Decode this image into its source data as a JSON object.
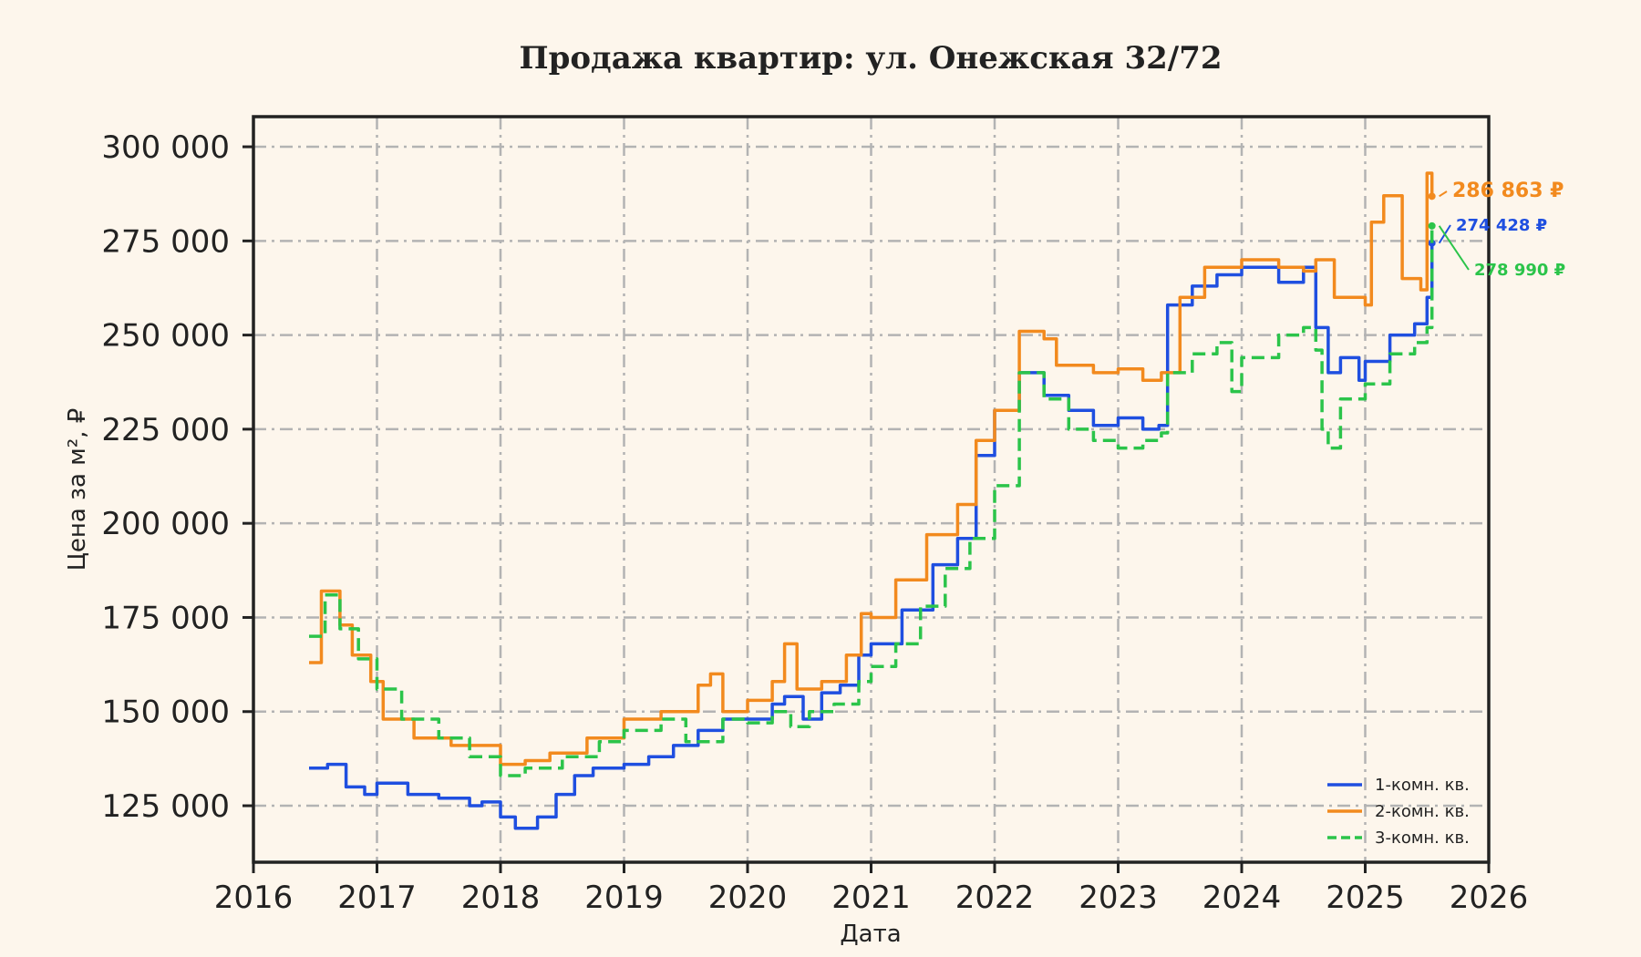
{
  "chart_data": {
    "type": "line",
    "title": "Продажа квартир: ул. Онежская 32/72",
    "xlabel": "Дата",
    "ylabel": "Цена за м², ₽",
    "xlim": [
      2016,
      2026
    ],
    "ylim": [
      110000,
      308000
    ],
    "x_ticks": [
      "2016",
      "2017",
      "2018",
      "2019",
      "2020",
      "2021",
      "2022",
      "2023",
      "2024",
      "2025",
      "2026"
    ],
    "y_ticks": [
      "125 000",
      "150 000",
      "175 000",
      "200 000",
      "225 000",
      "250 000",
      "275 000",
      "300 000"
    ],
    "grid": true,
    "legend_position": "lower-right",
    "series": [
      {
        "name": "1-комн. кв.",
        "color": "#1f4fe0",
        "dash": "solid",
        "end_label": "274 428 ₽",
        "x": [
          2016.45,
          2016.6,
          2016.75,
          2016.9,
          2017.0,
          2017.25,
          2017.5,
          2017.75,
          2017.85,
          2018.0,
          2018.12,
          2018.3,
          2018.45,
          2018.6,
          2018.75,
          2018.9,
          2019.0,
          2019.2,
          2019.4,
          2019.6,
          2019.8,
          2020.0,
          2020.2,
          2020.3,
          2020.45,
          2020.6,
          2020.75,
          2020.9,
          2021.0,
          2021.25,
          2021.5,
          2021.7,
          2021.85,
          2022.0,
          2022.2,
          2022.4,
          2022.6,
          2022.8,
          2023.0,
          2023.2,
          2023.33,
          2023.4,
          2023.6,
          2023.8,
          2024.0,
          2024.3,
          2024.5,
          2024.6,
          2024.7,
          2024.8,
          2024.95,
          2025.0,
          2025.2,
          2025.4,
          2025.5,
          2025.54
        ],
        "y": [
          135000,
          136000,
          130000,
          128000,
          131000,
          128000,
          127000,
          125000,
          126000,
          122000,
          119000,
          122000,
          128000,
          133000,
          135000,
          135000,
          136000,
          138000,
          141000,
          145000,
          148000,
          148000,
          152000,
          154000,
          148000,
          155000,
          157000,
          165000,
          168000,
          177000,
          189000,
          196000,
          218000,
          230000,
          240000,
          234000,
          230000,
          226000,
          228000,
          225000,
          226000,
          258000,
          263000,
          266000,
          268000,
          264000,
          268000,
          252000,
          240000,
          244000,
          238000,
          243000,
          250000,
          253000,
          260000,
          274428
        ]
      },
      {
        "name": "2-комн. кв.",
        "color": "#f28a1e",
        "dash": "solid",
        "end_label": "286 863 ₽",
        "x": [
          2016.45,
          2016.55,
          2016.7,
          2016.8,
          2016.95,
          2017.05,
          2017.3,
          2017.6,
          2017.85,
          2018.0,
          2018.2,
          2018.4,
          2018.7,
          2019.0,
          2019.3,
          2019.6,
          2019.7,
          2019.8,
          2020.0,
          2020.2,
          2020.3,
          2020.4,
          2020.6,
          2020.8,
          2020.92,
          2021.0,
          2021.2,
          2021.45,
          2021.7,
          2021.85,
          2022.0,
          2022.2,
          2022.4,
          2022.5,
          2022.8,
          2023.0,
          2023.2,
          2023.35,
          2023.5,
          2023.7,
          2024.0,
          2024.3,
          2024.5,
          2024.6,
          2024.75,
          2024.9,
          2025.0,
          2025.05,
          2025.15,
          2025.3,
          2025.45,
          2025.5,
          2025.54
        ],
        "y": [
          163000,
          182000,
          173000,
          165000,
          158000,
          148000,
          143000,
          141000,
          141000,
          136000,
          137000,
          139000,
          143000,
          148000,
          150000,
          157000,
          160000,
          150000,
          153000,
          158000,
          168000,
          156000,
          158000,
          165000,
          176000,
          175000,
          185000,
          197000,
          205000,
          222000,
          230000,
          251000,
          249000,
          242000,
          240000,
          241000,
          238000,
          240000,
          260000,
          268000,
          270000,
          268000,
          267000,
          270000,
          260000,
          260000,
          258000,
          280000,
          287000,
          265000,
          262000,
          293000,
          286863
        ]
      },
      {
        "name": "3-комн. кв.",
        "color": "#2bc44a",
        "dash": "dashed",
        "end_label": "278 990 ₽",
        "x": [
          2016.45,
          2016.58,
          2016.7,
          2016.85,
          2017.0,
          2017.2,
          2017.5,
          2017.75,
          2018.0,
          2018.2,
          2018.5,
          2018.8,
          2019.0,
          2019.3,
          2019.5,
          2019.8,
          2020.0,
          2020.2,
          2020.35,
          2020.5,
          2020.7,
          2020.9,
          2021.0,
          2021.2,
          2021.4,
          2021.6,
          2021.8,
          2022.0,
          2022.2,
          2022.4,
          2022.6,
          2022.8,
          2023.0,
          2023.2,
          2023.35,
          2023.4,
          2023.6,
          2023.8,
          2023.92,
          2024.0,
          2024.3,
          2024.5,
          2024.6,
          2024.65,
          2024.7,
          2024.8,
          2025.0,
          2025.2,
          2025.4,
          2025.5,
          2025.54
        ],
        "y": [
          170000,
          181000,
          172000,
          164000,
          156000,
          148000,
          143000,
          138000,
          133000,
          135000,
          138000,
          142000,
          145000,
          148000,
          142000,
          148000,
          147000,
          150000,
          146000,
          150000,
          152000,
          158000,
          162000,
          168000,
          178000,
          188000,
          196000,
          210000,
          240000,
          233000,
          225000,
          222000,
          220000,
          222000,
          224000,
          240000,
          245000,
          248000,
          235000,
          244000,
          250000,
          252000,
          246000,
          225000,
          220000,
          233000,
          237000,
          245000,
          248000,
          252000,
          278990
        ]
      }
    ]
  }
}
